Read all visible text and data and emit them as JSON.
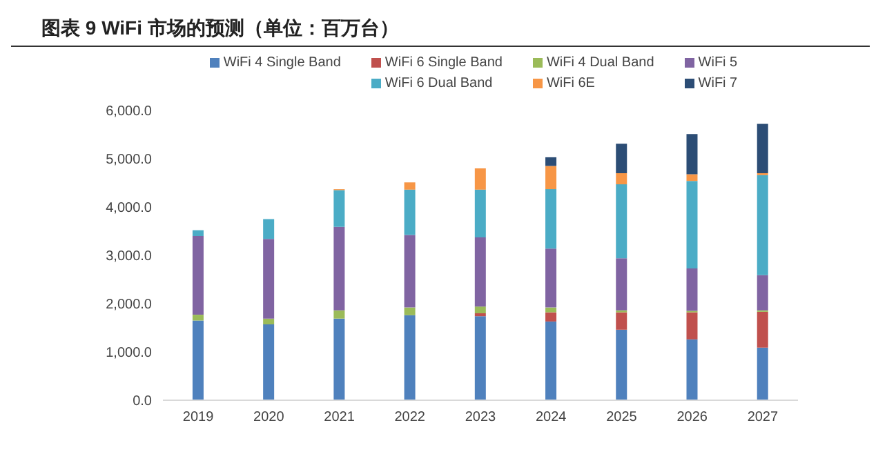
{
  "chart_data": {
    "type": "bar",
    "title": "图表 9 WiFi 市场的预测（单位：百万台）",
    "stacked": true,
    "legend": "top",
    "grid": false,
    "categories": [
      "2019",
      "2020",
      "2021",
      "2022",
      "2023",
      "2024",
      "2025",
      "2026",
      "2027"
    ],
    "series": [
      {
        "name": "WiFi 4 Single Band",
        "color": "#4f81bd",
        "values": [
          1650,
          1570,
          1690,
          1760,
          1740,
          1630,
          1460,
          1260,
          1090
        ]
      },
      {
        "name": "WiFi 6 Single Band",
        "color": "#c0504d",
        "values": [
          0,
          0,
          0,
          0,
          60,
          190,
          360,
          560,
          740
        ]
      },
      {
        "name": "WiFi 4 Dual Band",
        "color": "#9bbb59",
        "values": [
          120,
          120,
          170,
          160,
          140,
          100,
          40,
          30,
          30
        ]
      },
      {
        "name": "WiFi 5",
        "color": "#8064a2",
        "values": [
          1630,
          1650,
          1730,
          1500,
          1430,
          1220,
          1080,
          880,
          730
        ]
      },
      {
        "name": "WiFi 6 Dual Band",
        "color": "#4bacc6",
        "values": [
          120,
          410,
          760,
          940,
          990,
          1230,
          1530,
          1810,
          2070
        ]
      },
      {
        "name": "WiFi 6E",
        "color": "#f79646",
        "values": [
          0,
          0,
          20,
          150,
          440,
          480,
          230,
          140,
          40
        ]
      },
      {
        "name": "WiFi 7",
        "color": "#2c4d75",
        "values": [
          0,
          0,
          0,
          0,
          0,
          180,
          610,
          830,
          1020
        ]
      }
    ],
    "ylim": [
      0,
      6000
    ],
    "yticks": [
      {
        "value": 0,
        "label": "0.0"
      },
      {
        "value": 1000,
        "label": "1,000.0"
      },
      {
        "value": 2000,
        "label": "2,000.0"
      },
      {
        "value": 3000,
        "label": "3,000.0"
      },
      {
        "value": 4000,
        "label": "4,000.0"
      },
      {
        "value": 5000,
        "label": "5,000.0"
      },
      {
        "value": 6000,
        "label": "6,000.0"
      }
    ]
  }
}
